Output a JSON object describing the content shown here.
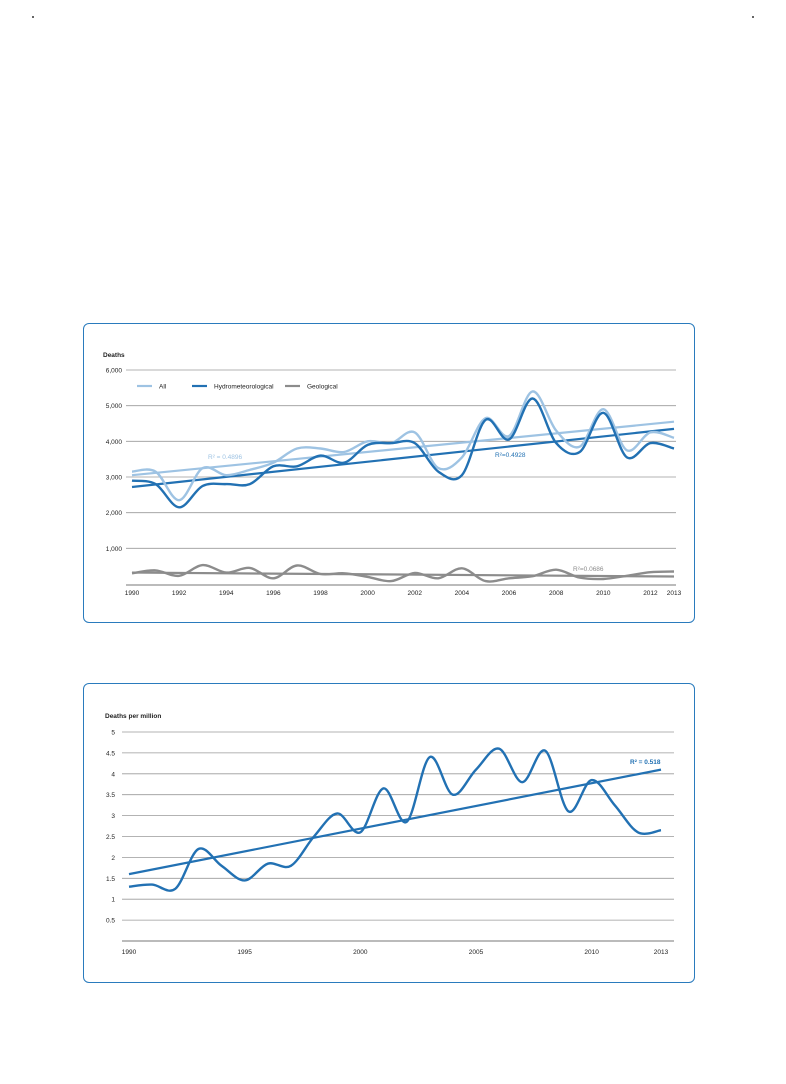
{
  "charts": {
    "deaths": {
      "type": "line",
      "ylabel": "Deaths",
      "colors": {
        "all": "#9ec3e3",
        "hydro": "#2271b3",
        "geo": "#8c8c8c"
      }
    },
    "per_million": {
      "type": "line",
      "ylabel": "Deaths per million",
      "colors": {
        "main": "#2271b3"
      }
    }
  },
  "chart_data": [
    {
      "type": "line",
      "ylabel": "Deaths",
      "ylim": [
        0,
        6000
      ],
      "yticks": [
        "1,000",
        "2,000",
        "3,000",
        "4,000",
        "5,000",
        "6,000"
      ],
      "yticks_values": [
        1000,
        2000,
        3000,
        4000,
        5000,
        6000
      ],
      "xticks": [
        "1990",
        "1992",
        "1994",
        "1996",
        "1998",
        "2000",
        "2002",
        "2004",
        "2006",
        "2008",
        "2010",
        "2012",
        "2013"
      ],
      "x": [
        1990,
        1991,
        1992,
        1993,
        1994,
        1995,
        1996,
        1997,
        1998,
        1999,
        2000,
        2001,
        2002,
        2003,
        2004,
        2005,
        2006,
        2007,
        2008,
        2009,
        2010,
        2011,
        2012,
        2013
      ],
      "grid": true,
      "legend_position": "top-left",
      "series": [
        {
          "name": "All",
          "values": [
            3150,
            3150,
            2350,
            3250,
            3050,
            3200,
            3400,
            3800,
            3800,
            3700,
            4000,
            3950,
            4250,
            3250,
            3550,
            4650,
            4150,
            5400,
            4300,
            3850,
            4900,
            3750,
            4250,
            4100
          ]
        },
        {
          "name": "Hydrometeorological",
          "values": [
            2900,
            2800,
            2150,
            2750,
            2800,
            2800,
            3300,
            3300,
            3600,
            3400,
            3900,
            3950,
            3950,
            3150,
            3050,
            4600,
            4050,
            5200,
            3950,
            3700,
            4800,
            3550,
            3950,
            3800
          ]
        },
        {
          "name": "Geological",
          "values": [
            300,
            380,
            230,
            530,
            320,
            450,
            160,
            520,
            280,
            300,
            200,
            80,
            310,
            160,
            440,
            80,
            160,
            220,
            400,
            180,
            140,
            230,
            330,
            350
          ]
        }
      ],
      "trendlines": [
        {
          "series": "All",
          "start": 3050,
          "end": 4550,
          "r2_label": "R² = 0.4896"
        },
        {
          "series": "Hydrometeorological",
          "start": 2720,
          "end": 4350,
          "r2_label": "R²=0.4928"
        },
        {
          "series": "Geological",
          "start": 320,
          "end": 210,
          "r2_label": "R²=0.0686"
        }
      ]
    },
    {
      "type": "line",
      "ylabel": "Deaths per million",
      "ylim": [
        0,
        5
      ],
      "yticks": [
        "0.5",
        "1",
        "1.5",
        "2",
        "2.5",
        "3",
        "3.5",
        "4",
        "4.5",
        "5"
      ],
      "yticks_values": [
        0.5,
        1,
        1.5,
        2,
        2.5,
        3,
        3.5,
        4,
        4.5,
        5
      ],
      "xticks": [
        "1990",
        "1995",
        "2000",
        "2005",
        "2010",
        "2013"
      ],
      "xticks_values": [
        1990,
        1995,
        2000,
        2005,
        2010,
        2013
      ],
      "x": [
        1990,
        1991,
        1992,
        1993,
        1994,
        1995,
        1996,
        1997,
        1998,
        1999,
        2000,
        2001,
        2002,
        2003,
        2004,
        2005,
        2006,
        2007,
        2008,
        2009,
        2010,
        2011,
        2012,
        2013
      ],
      "grid": true,
      "series": [
        {
          "values": [
            1.3,
            1.35,
            1.25,
            2.2,
            1.8,
            1.45,
            1.85,
            1.8,
            2.5,
            3.05,
            2.6,
            3.65,
            2.85,
            4.4,
            3.5,
            4.1,
            4.6,
            3.8,
            4.55,
            3.1,
            3.85,
            3.25,
            2.6,
            2.65
          ]
        }
      ],
      "trendlines": [
        {
          "start": 1.6,
          "end": 4.1,
          "r2_label": "R² = 0.518"
        }
      ]
    }
  ]
}
